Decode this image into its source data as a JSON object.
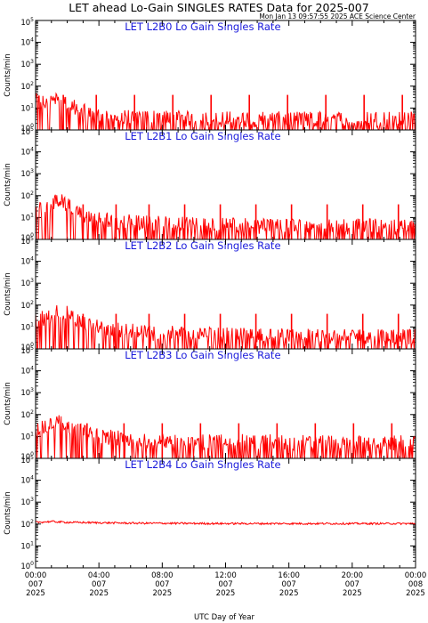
{
  "header": {
    "title": "LET ahead Lo-Gain SINGLES RATES Data for 2025-007",
    "timestamp": "Mon Jan 13 09:57:55 2025 ACE Science Center"
  },
  "xlabel": "UTC Day of Year",
  "x_ticks": [
    {
      "time": "00:00",
      "day": "007",
      "year": "2025"
    },
    {
      "time": "04:00",
      "day": "007",
      "year": "2025"
    },
    {
      "time": "08:00",
      "day": "007",
      "year": "2025"
    },
    {
      "time": "12:00",
      "day": "007",
      "year": "2025"
    },
    {
      "time": "16:00",
      "day": "007",
      "year": "2025"
    },
    {
      "time": "20:00",
      "day": "007",
      "year": "2025"
    },
    {
      "time": "00:00",
      "day": "008",
      "year": "2025"
    }
  ],
  "colors": {
    "series": "#ff0000",
    "panel_title": "#1a1adb",
    "axes": "#000000"
  },
  "chart_data": [
    {
      "type": "line",
      "title": "LET L2B0 Lo Gain Singles Rate",
      "ylabel": "Counts/min",
      "y_scale": "log",
      "ylim": [
        1,
        100000
      ],
      "xlim": [
        "007 00:00",
        "008 00:00"
      ],
      "y_tick_labels": [
        "10⁰",
        "10¹",
        "10²",
        "10³",
        "10⁴",
        "10⁵"
      ],
      "series": [
        {
          "points": [
            [
              "007 00:00",
              15
            ],
            [
              "007 00:30",
              12
            ],
            [
              "007 01:00",
              18
            ],
            [
              "007 01:30",
              30
            ],
            [
              "007 02:00",
              10
            ],
            [
              "007 03:00",
              5
            ],
            [
              "007 04:00",
              3
            ],
            [
              "007 06:00",
              2.5
            ],
            [
              "007 08:00",
              2.5
            ],
            [
              "007 10:00",
              2.2
            ],
            [
              "007 12:00",
              2.2
            ],
            [
              "007 14:00",
              2.2
            ],
            [
              "007 16:00",
              2.2
            ],
            [
              "007 18:00",
              2.2
            ],
            [
              "007 20:00",
              2.2
            ],
            [
              "007 22:00",
              2.2
            ],
            [
              "008 00:00",
              2.2
            ]
          ],
          "spike_peak": 40,
          "spike_times": [
            "007 01:45",
            "007 03:50",
            "007 06:15",
            "007 08:40",
            "007 11:05",
            "007 13:30",
            "007 15:55",
            "007 18:20",
            "007 20:45",
            "007 23:10"
          ]
        }
      ]
    },
    {
      "type": "line",
      "title": "LET L2B1 Lo Gain Singles Rate",
      "ylabel": "Counts/min",
      "y_scale": "log",
      "ylim": [
        1,
        100000
      ],
      "xlim": [
        "007 00:00",
        "008 00:00"
      ],
      "y_tick_labels": [
        "10⁰",
        "10¹",
        "10²",
        "10³",
        "10⁴",
        "10⁵"
      ],
      "series": [
        {
          "points": [
            [
              "007 00:00",
              18
            ],
            [
              "007 00:45",
              22
            ],
            [
              "007 01:30",
              45
            ],
            [
              "007 02:00",
              25
            ],
            [
              "007 02:30",
              15
            ],
            [
              "007 03:30",
              7
            ],
            [
              "007 05:00",
              5
            ],
            [
              "007 07:00",
              4
            ],
            [
              "007 09:00",
              3.5
            ],
            [
              "007 12:00",
              3
            ],
            [
              "007 15:00",
              3
            ],
            [
              "007 18:00",
              2.8
            ],
            [
              "007 21:00",
              2.8
            ],
            [
              "008 00:00",
              2.8
            ]
          ],
          "spike_peak": 40,
          "spike_times": [
            "007 03:00",
            "007 05:05",
            "007 07:10",
            "007 09:25",
            "007 11:40",
            "007 13:55",
            "007 16:10",
            "007 18:25",
            "007 20:40",
            "007 22:55"
          ]
        }
      ]
    },
    {
      "type": "line",
      "title": "LET L2B2 Lo Gain Singles Rate",
      "ylabel": "Counts/min",
      "y_scale": "log",
      "ylim": [
        1,
        100000
      ],
      "xlim": [
        "007 00:00",
        "008 00:00"
      ],
      "y_tick_labels": [
        "10⁰",
        "10¹",
        "10²",
        "10³",
        "10⁴",
        "10⁵"
      ],
      "series": [
        {
          "points": [
            [
              "007 00:00",
              15
            ],
            [
              "007 00:45",
              20
            ],
            [
              "007 01:30",
              40
            ],
            [
              "007 02:00",
              30
            ],
            [
              "007 02:30",
              15
            ],
            [
              "007 03:30",
              8
            ],
            [
              "007 05:00",
              5
            ],
            [
              "007 07:00",
              4
            ],
            [
              "007 09:00",
              3.5
            ],
            [
              "007 12:00",
              3
            ],
            [
              "007 15:00",
              2.8
            ],
            [
              "007 18:00",
              2.5
            ],
            [
              "007 21:00",
              2.5
            ],
            [
              "008 00:00",
              2.5
            ]
          ],
          "spike_peak": 40,
          "spike_times": [
            "007 03:00",
            "007 05:05",
            "007 07:10",
            "007 09:25",
            "007 11:40",
            "007 13:55",
            "007 16:10",
            "007 18:25",
            "007 20:40",
            "007 22:55"
          ]
        }
      ]
    },
    {
      "type": "line",
      "title": "LET L2B3 Lo Gain Singles Rate",
      "ylabel": "Counts/min",
      "y_scale": "log",
      "ylim": [
        1,
        100000
      ],
      "xlim": [
        "007 00:00",
        "008 00:00"
      ],
      "y_tick_labels": [
        "10⁰",
        "10¹",
        "10²",
        "10³",
        "10⁴",
        "10⁵"
      ],
      "series": [
        {
          "points": [
            [
              "007 00:00",
              15
            ],
            [
              "007 00:45",
              18
            ],
            [
              "007 01:30",
              35
            ],
            [
              "007 02:00",
              25
            ],
            [
              "007 02:30",
              15
            ],
            [
              "007 03:30",
              8
            ],
            [
              "007 05:00",
              6
            ],
            [
              "007 07:00",
              5
            ],
            [
              "007 09:00",
              4
            ],
            [
              "007 12:00",
              4
            ],
            [
              "007 15:00",
              4
            ],
            [
              "007 18:00",
              3.5
            ],
            [
              "007 21:00",
              3.5
            ],
            [
              "008 00:00",
              3.5
            ]
          ],
          "spike_peak": 40,
          "spike_times": [
            "007 03:15",
            "007 05:35",
            "007 08:00",
            "007 10:25",
            "007 12:50",
            "007 15:15",
            "007 17:40",
            "007 20:05",
            "007 22:30"
          ]
        }
      ]
    },
    {
      "type": "line",
      "title": "LET L2B4 Lo Gain Singles Rate",
      "ylabel": "Counts/min",
      "y_scale": "log",
      "ylim": [
        1,
        100000
      ],
      "xlim": [
        "007 00:00",
        "008 00:00"
      ],
      "y_tick_labels": [
        "10⁰",
        "10¹",
        "10²",
        "10³",
        "10⁴",
        "10⁵"
      ],
      "series": [
        {
          "points": [
            [
              "007 00:00",
              120
            ],
            [
              "007 01:00",
              130
            ],
            [
              "007 02:00",
              120
            ],
            [
              "007 06:00",
              110
            ],
            [
              "007 12:00",
              105
            ],
            [
              "007 18:00",
              105
            ],
            [
              "008 00:00",
              105
            ]
          ],
          "spike_peak": 0,
          "spike_times": []
        }
      ]
    }
  ]
}
